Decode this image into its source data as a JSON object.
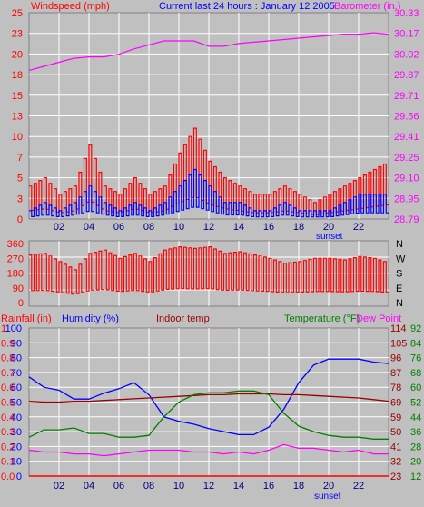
{
  "colors": {
    "background": "#c0c0c0",
    "grid": "#ffffff",
    "wind_speed": "#ff0000",
    "wind_gust": "#0000ff",
    "barometer": "#ff00ff",
    "wind_dir": "#ff0000",
    "rainfall": "#ff0000",
    "humidity": "#0000ff",
    "indoor_temp": "#990000",
    "temperature": "#008000",
    "dew_point": "#ff00ff",
    "title": "#0000ff",
    "tick": "#000080"
  },
  "header": {
    "windspeed_label": "Windspeed (mph)",
    "title": "Current last 24 hours : January 12 2005",
    "barometer_label": "Barometer (in.)"
  },
  "x_ticks": [
    "02",
    "04",
    "06",
    "08",
    "10",
    "12",
    "14",
    "16",
    "18",
    "20",
    "22"
  ],
  "sunset_label": "sunset",
  "chart_data": [
    {
      "type": "line",
      "title": "",
      "xlabel": "",
      "x_hours": [
        0,
        24
      ],
      "left_axis": {
        "label": "Windspeed (mph)",
        "ylim": [
          0,
          25
        ],
        "ticks": [
          "0",
          "3",
          "5",
          "7",
          "10",
          "13",
          "15",
          "18",
          "20",
          "23",
          "25"
        ]
      },
      "right_axis": {
        "label": "Barometer (in.)",
        "ylim": [
          28.79,
          30.33
        ],
        "ticks": [
          "28.79",
          "28.95",
          "29.10",
          "29.25",
          "29.41",
          "29.56",
          "29.71",
          "29.87",
          "30.02",
          "30.17",
          "30.33"
        ]
      },
      "series": [
        {
          "name": "Barometer",
          "axis": "right",
          "x": [
            0,
            1,
            2,
            3,
            4,
            5,
            6,
            7,
            8,
            9,
            10,
            11,
            12,
            13,
            14,
            15,
            16,
            17,
            18,
            19,
            20,
            21,
            22,
            23,
            24
          ],
          "values": [
            29.9,
            29.93,
            29.96,
            29.99,
            30.0,
            30.0,
            30.02,
            30.06,
            30.09,
            30.12,
            30.12,
            30.12,
            30.08,
            30.08,
            30.1,
            30.11,
            30.12,
            30.13,
            30.14,
            30.15,
            30.16,
            30.17,
            30.17,
            30.18,
            30.17
          ]
        },
        {
          "name": "Wind gust",
          "axis": "left",
          "x": [
            0,
            1,
            2,
            3,
            4,
            5,
            6,
            7,
            8,
            9,
            10,
            11,
            12,
            13,
            14,
            15,
            16,
            17,
            18,
            19,
            20,
            21,
            22,
            23,
            24
          ],
          "values": [
            4,
            5,
            3,
            4,
            9,
            4,
            3,
            5,
            3,
            4,
            8,
            11,
            7,
            5,
            4,
            3,
            3,
            4,
            3,
            2,
            3,
            4,
            5,
            6,
            7
          ]
        },
        {
          "name": "Wind average",
          "axis": "left",
          "x": [
            0,
            1,
            2,
            3,
            4,
            5,
            6,
            7,
            8,
            9,
            10,
            11,
            12,
            13,
            14,
            15,
            16,
            17,
            18,
            19,
            20,
            21,
            22,
            23,
            24
          ],
          "values": [
            1,
            2,
            1,
            2,
            4,
            2,
            1,
            2,
            1,
            2,
            4,
            6,
            4,
            2,
            2,
            1,
            1,
            2,
            1,
            1,
            1,
            2,
            3,
            3,
            3
          ]
        }
      ]
    },
    {
      "type": "line",
      "title": "",
      "x_hours": [
        0,
        24
      ],
      "left_axis": {
        "ylim": [
          0,
          360
        ],
        "ticks": [
          "0",
          "90",
          "180",
          "270",
          "360"
        ]
      },
      "right_axis": {
        "ticks": [
          "N",
          "E",
          "S",
          "W",
          "N"
        ]
      },
      "series": [
        {
          "name": "Wind direction",
          "x": [
            0,
            1,
            2,
            3,
            4,
            5,
            6,
            7,
            8,
            9,
            10,
            11,
            12,
            13,
            14,
            15,
            16,
            17,
            18,
            19,
            20,
            21,
            22,
            23,
            24
          ],
          "values": [
            290,
            300,
            250,
            200,
            300,
            320,
            270,
            300,
            250,
            320,
            340,
            330,
            340,
            300,
            310,
            290,
            270,
            240,
            250,
            270,
            270,
            260,
            280,
            270,
            240
          ]
        }
      ]
    },
    {
      "type": "line",
      "title": "",
      "x_hours": [
        0,
        24
      ],
      "labels": {
        "rainfall": "Rainfall (in)",
        "humidity": "Humidity (%)",
        "indoor_temp": "Indoor temp",
        "temperature": "Temperature (°F)",
        "dew_point": "Dew Point"
      },
      "rain_axis": {
        "ylim": [
          0,
          1
        ],
        "ticks": [
          "0.0",
          "0.1",
          "0.2",
          "0.3",
          "0.4",
          "0.5",
          "0.6",
          "0.7",
          "0.8",
          "0.9",
          "1"
        ]
      },
      "humidity_axis": {
        "ylim": [
          0,
          100
        ],
        "ticks": [
          "0",
          "10",
          "20",
          "30",
          "40",
          "50",
          "60",
          "70",
          "80",
          "90",
          "100"
        ]
      },
      "temp_axis": {
        "ylim": [
          12,
          92
        ],
        "ticks": [
          "12",
          "20",
          "28",
          "36",
          "44",
          "52",
          "60",
          "68",
          "76",
          "84",
          "92"
        ]
      },
      "indoor_axis": {
        "ylim": [
          23,
          114
        ],
        "ticks": [
          "23",
          "32",
          "41",
          "50",
          "59",
          "69",
          "78",
          "87",
          "96",
          "105",
          "114"
        ]
      },
      "series": [
        {
          "name": "Humidity (%)",
          "axis": "humidity",
          "x": [
            0,
            1,
            2,
            3,
            4,
            5,
            6,
            7,
            8,
            9,
            10,
            11,
            12,
            13,
            14,
            15,
            16,
            17,
            18,
            19,
            20,
            21,
            22,
            23,
            24
          ],
          "values": [
            67,
            60,
            58,
            52,
            52,
            56,
            59,
            63,
            55,
            40,
            37,
            35,
            32,
            30,
            28,
            28,
            33,
            45,
            63,
            75,
            79,
            79,
            79,
            77,
            76
          ]
        },
        {
          "name": "Indoor temp",
          "axis": "indoor",
          "x": [
            0,
            1,
            2,
            3,
            4,
            5,
            6,
            7,
            8,
            9,
            10,
            11,
            12,
            13,
            14,
            15,
            16,
            17,
            18,
            19,
            20,
            21,
            22,
            23,
            24
          ],
          "values": [
            69,
            68.5,
            68.5,
            69,
            69,
            69.5,
            70,
            70.5,
            71,
            71.5,
            72,
            72.5,
            73,
            73,
            73.5,
            73.5,
            73.5,
            73,
            73,
            72.5,
            72,
            71.5,
            71,
            70,
            69
          ]
        },
        {
          "name": "Temperature (°F)",
          "axis": "temp",
          "x": [
            0,
            1,
            2,
            3,
            4,
            5,
            6,
            7,
            8,
            9,
            10,
            11,
            12,
            13,
            14,
            15,
            16,
            17,
            18,
            19,
            20,
            21,
            22,
            23,
            24
          ],
          "values": [
            33,
            37,
            37,
            38,
            35,
            35,
            33,
            33,
            34,
            44,
            52,
            56,
            57,
            57,
            58,
            58,
            56,
            46,
            39,
            36,
            34,
            33,
            33,
            32,
            32
          ]
        },
        {
          "name": "Dew Point",
          "axis": "temp",
          "x": [
            0,
            1,
            2,
            3,
            4,
            5,
            6,
            7,
            8,
            9,
            10,
            11,
            12,
            13,
            14,
            15,
            16,
            17,
            18,
            19,
            20,
            21,
            22,
            23,
            24
          ],
          "values": [
            26,
            25,
            25,
            24,
            24,
            23,
            24,
            25,
            26,
            26,
            26,
            25,
            25,
            24,
            25,
            24,
            26,
            29,
            27,
            27,
            26,
            25,
            26,
            24,
            24
          ]
        },
        {
          "name": "Rainfall (in)",
          "axis": "rain",
          "x": [
            0,
            24
          ],
          "values": [
            0,
            0
          ]
        }
      ]
    }
  ]
}
